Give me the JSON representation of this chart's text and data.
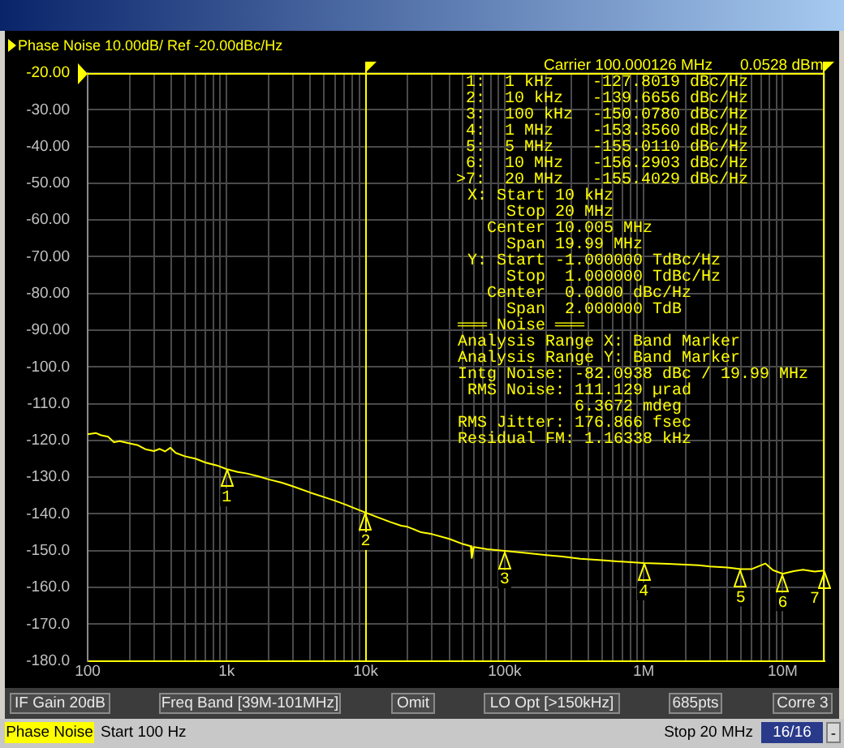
{
  "chart_data": {
    "type": "line",
    "title": "Phase Noise 10.00dB/ Ref -20.00dBc/Hz",
    "x": [
      100,
      115,
      125,
      140,
      155,
      170,
      200,
      230,
      260,
      300,
      330,
      360,
      394,
      430,
      500,
      600,
      700,
      850,
      1000,
      1200,
      1400,
      1700,
      2000,
      2500,
      3000,
      4000,
      5000,
      6000,
      7200,
      8500,
      10000,
      12000,
      15000,
      18000,
      20000,
      25000,
      30000,
      40000,
      50000,
      57000,
      58000,
      60000,
      75000,
      100000,
      150000,
      200000,
      260000,
      350000,
      500000,
      700000,
      1000000,
      1500000,
      2000000,
      2500000,
      3000000,
      4000000,
      5000000,
      6000000,
      7500000,
      8500000,
      10000000,
      12000000,
      14000000,
      17000000,
      20000000
    ],
    "series": [
      {
        "color": "#ffff00",
        "values": [
          -118.3,
          -118.0,
          -118.6,
          -119.0,
          -120.5,
          -120.2,
          -120.8,
          -121.3,
          -122.4,
          -122.9,
          -122.3,
          -123.0,
          -122.0,
          -123.4,
          -124.3,
          -125.0,
          -126.0,
          -126.8,
          -127.8019,
          -128.6,
          -129.0,
          -129.8,
          -130.6,
          -131.5,
          -132.5,
          -134.2,
          -135.4,
          -136.4,
          -137.5,
          -138.6,
          -139.6656,
          -140.8,
          -142.2,
          -143.2,
          -143.5,
          -145.0,
          -145.5,
          -146.8,
          -148.2,
          -148.8,
          -152.0,
          -149.0,
          -149.6,
          -150.078,
          -150.7,
          -151.2,
          -151.6,
          -152.2,
          -152.6,
          -153.0,
          -153.356,
          -153.6,
          -153.8,
          -154.0,
          -154.3,
          -154.6,
          -155.011,
          -155.0,
          -153.5,
          -155.3,
          -156.2903,
          -155.6,
          -155.2,
          -155.7,
          -155.4029
        ]
      }
    ],
    "xlim": [
      100,
      20000000
    ],
    "xticks": [
      {
        "value": 100,
        "label": "100"
      },
      {
        "value": 200,
        "label": null
      },
      {
        "value": 300,
        "label": null
      },
      {
        "value": 400,
        "label": null
      },
      {
        "value": 500,
        "label": null
      },
      {
        "value": 600,
        "label": null
      },
      {
        "value": 700,
        "label": null
      },
      {
        "value": 800,
        "label": null
      },
      {
        "value": 900,
        "label": null
      },
      {
        "value": 1000,
        "label": "1k"
      },
      {
        "value": 2000,
        "label": null
      },
      {
        "value": 3000,
        "label": null
      },
      {
        "value": 4000,
        "label": null
      },
      {
        "value": 5000,
        "label": null
      },
      {
        "value": 6000,
        "label": null
      },
      {
        "value": 7000,
        "label": null
      },
      {
        "value": 8000,
        "label": null
      },
      {
        "value": 9000,
        "label": null
      },
      {
        "value": 10000,
        "label": "10k"
      },
      {
        "value": 20000,
        "label": null
      },
      {
        "value": 30000,
        "label": null
      },
      {
        "value": 40000,
        "label": null
      },
      {
        "value": 50000,
        "label": null
      },
      {
        "value": 60000,
        "label": null
      },
      {
        "value": 70000,
        "label": null
      },
      {
        "value": 80000,
        "label": null
      },
      {
        "value": 90000,
        "label": null
      },
      {
        "value": 100000,
        "label": "100k"
      },
      {
        "value": 200000,
        "label": null
      },
      {
        "value": 300000,
        "label": null
      },
      {
        "value": 400000,
        "label": null
      },
      {
        "value": 500000,
        "label": null
      },
      {
        "value": 600000,
        "label": null
      },
      {
        "value": 700000,
        "label": null
      },
      {
        "value": 800000,
        "label": null
      },
      {
        "value": 900000,
        "label": null
      },
      {
        "value": 1000000,
        "label": "1M"
      },
      {
        "value": 2000000,
        "label": null
      },
      {
        "value": 3000000,
        "label": null
      },
      {
        "value": 4000000,
        "label": null
      },
      {
        "value": 5000000,
        "label": null
      },
      {
        "value": 6000000,
        "label": null
      },
      {
        "value": 7000000,
        "label": null
      },
      {
        "value": 8000000,
        "label": null
      },
      {
        "value": 9000000,
        "label": null
      },
      {
        "value": 10000000,
        "label": "10M"
      },
      {
        "value": 20000000,
        "label": null
      }
    ],
    "ylim": [
      -180,
      -20
    ],
    "yticks": [
      {
        "value": -20,
        "label": "-20.00"
      },
      {
        "value": -30,
        "label": "-30.00"
      },
      {
        "value": -40,
        "label": "-40.00"
      },
      {
        "value": -50,
        "label": "-50.00"
      },
      {
        "value": -60,
        "label": "-60.00"
      },
      {
        "value": -70,
        "label": "-70.00"
      },
      {
        "value": -80,
        "label": "-80.00"
      },
      {
        "value": -90,
        "label": "-90.00"
      },
      {
        "value": -100,
        "label": "-100.0"
      },
      {
        "value": -110,
        "label": "-110.0"
      },
      {
        "value": -120,
        "label": "-120.0"
      },
      {
        "value": -130,
        "label": "-130.0"
      },
      {
        "value": -140,
        "label": "-140.0"
      },
      {
        "value": -150,
        "label": "-150.0"
      },
      {
        "value": -160,
        "label": "-160.0"
      },
      {
        "value": -170,
        "label": "-170.0"
      },
      {
        "value": -180,
        "label": "-180.0"
      }
    ],
    "log": "x",
    "grid": true,
    "marker": "none",
    "ref_lines": [
      {
        "axis": "y",
        "value": -20,
        "color": "#ffff00"
      },
      {
        "axis": "x",
        "value": 10000,
        "color": "#ffff00"
      },
      {
        "axis": "x",
        "value": 20000000,
        "color": "#ffff00"
      }
    ],
    "annotations": [
      "Carrier 100.000126 MHz",
      "0.0528 dBm",
      "1:  1 kHz    -127.8019 dBc/Hz",
      "2:  10 kHz   -139.6656 dBc/Hz",
      "3:  100 kHz  -150.0780 dBc/Hz",
      "4:  1 MHz    -153.3560 dBc/Hz",
      "5:  5 MHz    -155.0110 dBc/Hz",
      "6:  10 MHz   -156.2903 dBc/Hz",
      ">7:  20 MHz   -155.4029 dBc/Hz",
      "X: Start 10 kHz",
      "Stop 20 MHz",
      "Center 10.005 MHz",
      "Span 19.99 MHz",
      "Y: Start -1.000000 TdBc/Hz",
      "Stop  1.000000 TdBc/Hz",
      "Center  0.0000 dBc/Hz",
      "Span  2.000000 TdB",
      "═══ Noise ═══",
      "Analysis Range X: Band Marker",
      "Analysis Range Y: Band Marker",
      "Intg Noise: -82.0938 dBc / 19.99 MHz",
      "RMS Noise: 111.129 µrad",
      "6.3672 mdeg",
      "RMS Jitter: 176.866 fsec",
      "Residual FM: 1.16338 kHz",
      "IF Gain 20dB",
      "Freq Band [39M-101MHz]",
      "Omit",
      "LO Opt [>150kHz]",
      "685pts",
      "Corre 3",
      "Phase Noise",
      "Start 100 Hz",
      "Stop 20 MHz",
      "16/16",
      "-",
      {
        "text": "1",
        "x": 1000,
        "y": -127.8019
      },
      {
        "text": "2",
        "x": 10000,
        "y": -139.6656
      },
      {
        "text": "3",
        "x": 100000,
        "y": -150.078
      },
      {
        "text": "4",
        "x": 1000000,
        "y": -153.356
      },
      {
        "text": "5",
        "x": 5000000,
        "y": -155.011
      },
      {
        "text": "6",
        "x": 10000000,
        "y": -156.2903
      },
      {
        "text": "7",
        "x": 20000000,
        "y": -155.4029
      }
    ]
  }
}
